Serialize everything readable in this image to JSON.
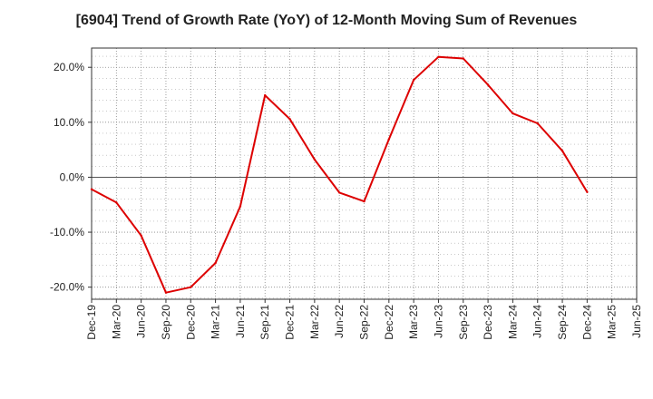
{
  "chart_data": {
    "type": "line",
    "title": "[6904]  Trend of Growth Rate (YoY) of 12-Month Moving Sum of Revenues",
    "xlabel": "",
    "ylabel": "",
    "x_ticks": [
      "Dec-19",
      "Mar-20",
      "Jun-20",
      "Sep-20",
      "Dec-20",
      "Mar-21",
      "Jun-21",
      "Sep-21",
      "Dec-21",
      "Mar-22",
      "Jun-22",
      "Sep-22",
      "Dec-22",
      "Mar-23",
      "Jun-23",
      "Sep-23",
      "Dec-23",
      "Mar-24",
      "Jun-24",
      "Sep-24",
      "Dec-24",
      "Mar-25",
      "Jun-25"
    ],
    "y_ticks": [
      "20.0%",
      "10.0%",
      "0.0%",
      "-10.0%",
      "-20.0%"
    ],
    "y_tick_values": [
      20,
      10,
      0,
      -10,
      -20
    ],
    "ylim": [
      -22.2,
      23.5
    ],
    "grid": true,
    "series": [
      {
        "color": "#dd0000",
        "x": [
          "Dec-19",
          "Mar-20",
          "Jun-20",
          "Sep-20",
          "Dec-20",
          "Mar-21",
          "Jun-21",
          "Sep-21",
          "Dec-21",
          "Mar-22",
          "Jun-22",
          "Sep-22",
          "Dec-22",
          "Mar-23",
          "Jun-23",
          "Sep-23",
          "Dec-23",
          "Mar-24",
          "Jun-24",
          "Sep-24",
          "Dec-24"
        ],
        "values": [
          -2.2,
          -4.6,
          -10.6,
          -21.0,
          -20.0,
          -15.6,
          -5.3,
          14.9,
          10.6,
          3.2,
          -2.8,
          -4.4,
          6.9,
          17.7,
          21.9,
          21.6,
          16.8,
          11.6,
          9.8,
          4.8,
          -2.7
        ]
      }
    ]
  }
}
